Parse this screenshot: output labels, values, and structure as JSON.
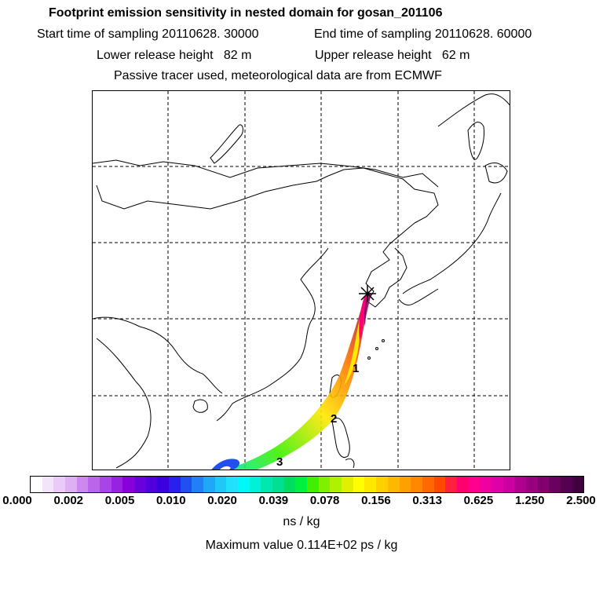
{
  "header": {
    "title": "Footprint emission sensitivity in nested domain for gosan_201106",
    "start_label": "Start time of sampling 20110628. 30000",
    "end_label": "End time of sampling 20110628. 60000",
    "lower_label": "Lower release height   82 m",
    "upper_label": "Upper release height   62 m",
    "note": "Passive tracer used, meteorological data are from ECMWF"
  },
  "map": {
    "trajectory_labels": [
      "1",
      "2",
      "3"
    ],
    "release_marker": "release-site-star"
  },
  "colorbar": {
    "ticks": [
      "0.000",
      "0.002",
      "0.005",
      "0.010",
      "0.020",
      "0.039",
      "0.078",
      "0.156",
      "0.313",
      "0.625",
      "1.250",
      "2.500"
    ],
    "colors": [
      "#ffffff",
      "#f4e4fb",
      "#e9caf8",
      "#ddb0f4",
      "#cc88ee",
      "#bb66ea",
      "#aa44e6",
      "#9922e2",
      "#8800dd",
      "#6a00dd",
      "#5000dd",
      "#3a00dd",
      "#2a20ee",
      "#2050f0",
      "#2080f4",
      "#20a8f8",
      "#20c8fa",
      "#20e0fc",
      "#00f8f8",
      "#00f0d8",
      "#00e8b0",
      "#00e090",
      "#00dc60",
      "#00f040",
      "#40f000",
      "#80f000",
      "#b0f000",
      "#e0f000",
      "#ffff00",
      "#ffe800",
      "#ffd000",
      "#ffb800",
      "#ffa000",
      "#ff8800",
      "#ff6800",
      "#ff4800",
      "#ff2040",
      "#ff0070",
      "#ff0090",
      "#f000a0",
      "#e000a8",
      "#cc00a0",
      "#b00090",
      "#980080",
      "#800070",
      "#6a0060",
      "#550050",
      "#400040"
    ],
    "unit": "ns / kg"
  },
  "max_value_text": "Maximum value  0.114E+02 ps / kg"
}
